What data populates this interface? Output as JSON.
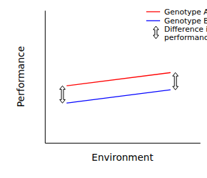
{
  "chart_data": {
    "type": "line",
    "x_label": "Environment",
    "y_label": "Performance",
    "x": [
      1.4,
      8.1
    ],
    "series": [
      {
        "name": "Genotype A",
        "color": "#ff0000",
        "values": [
          4.3,
          5.3
        ]
      },
      {
        "name": "Genotype B",
        "color": "#0000ff",
        "values": [
          3.0,
          4.0
        ]
      }
    ],
    "xlim": [
      0,
      10
    ],
    "ylim": [
      0,
      10
    ],
    "tick_labels": false,
    "legend": "upper right",
    "annotation": {
      "label": "Difference in\nperformance"
    }
  }
}
